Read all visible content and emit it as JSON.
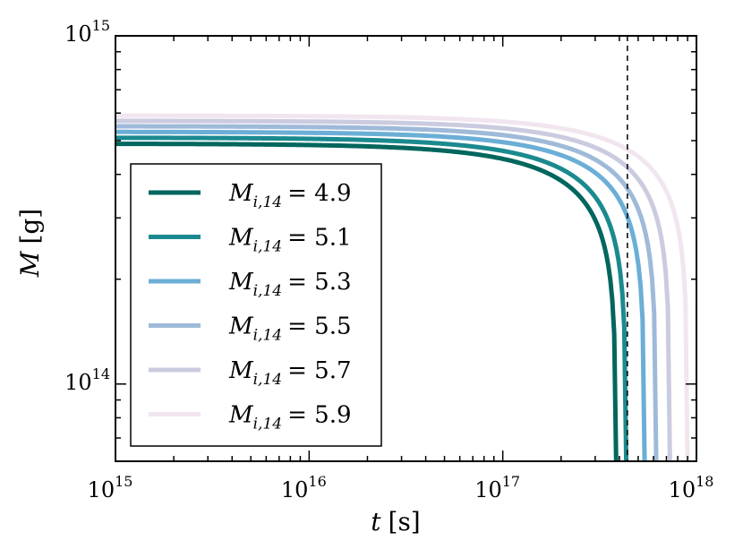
{
  "chart_data": {
    "type": "line",
    "xscale": "log",
    "yscale": "log",
    "xlim": [
      1000000000000000.0,
      1e+18
    ],
    "ylim": [
      60000000000000.0,
      1000000000000000.0
    ],
    "x_ticks": [
      {
        "base": "10",
        "exp": "15",
        "value": 1000000000000000.0
      },
      {
        "base": "10",
        "exp": "16",
        "value": 1e+16
      },
      {
        "base": "10",
        "exp": "17",
        "value": 1e+17
      },
      {
        "base": "10",
        "exp": "18",
        "value": 1e+18
      }
    ],
    "y_ticks": [
      {
        "base": "10",
        "exp": "15",
        "value": 1000000000000000.0
      },
      {
        "base": "10",
        "exp": "14",
        "value": 100000000000000.0
      }
    ],
    "xlabel": {
      "symbol": "t",
      "unit": "[s]"
    },
    "ylabel": {
      "symbol": "M",
      "unit": "[g]"
    },
    "vline_x": 4.4e+17,
    "legend_position": "lower-left",
    "series": [
      {
        "label_symbol": "M",
        "label_sub": "i,14",
        "label_value": "= 4.9",
        "M0": 490000000000000.0,
        "t_end": 3.85e+17,
        "color": "#01665e"
      },
      {
        "label_symbol": "M",
        "label_sub": "i,14",
        "label_value": "= 5.1",
        "M0": 510000000000000.0,
        "t_end": 4.34e+17,
        "color": "#1b8a8f"
      },
      {
        "label_symbol": "M",
        "label_sub": "i,14",
        "label_value": "= 5.3",
        "M0": 530000000000000.0,
        "t_end": 5.4e+17,
        "color": "#6baed6"
      },
      {
        "label_symbol": "M",
        "label_sub": "i,14",
        "label_value": "= 5.5",
        "M0": 550000000000000.0,
        "t_end": 6.2e+17,
        "color": "#9fbad9"
      },
      {
        "label_symbol": "M",
        "label_sub": "i,14",
        "label_value": "= 5.7",
        "M0": 570000000000000.0,
        "t_end": 7.3e+17,
        "color": "#cbcbe0"
      },
      {
        "label_symbol": "M",
        "label_sub": "i,14",
        "label_value": "= 5.9",
        "M0": 590000000000000.0,
        "t_end": 9e+17,
        "color": "#f1e6f0"
      }
    ]
  }
}
